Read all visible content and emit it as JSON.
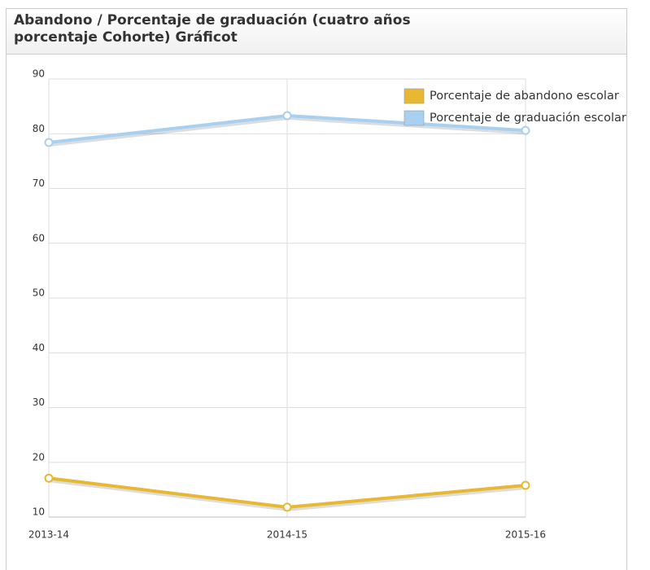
{
  "chart_data": {
    "type": "line",
    "title": "Abandono / Porcentaje de graduación (cuatro años porcentaje Cohorte) Gráficot",
    "categories": [
      "2013-14",
      "2014-15",
      "2015-16"
    ],
    "series": [
      {
        "name": "Porcentaje de abandono escolar",
        "color": "#e8b830",
        "values": [
          17.1,
          11.8,
          15.8
        ]
      },
      {
        "name": "Porcentaje de graduación escolar",
        "color": "#a8d0f0",
        "values": [
          78.4,
          83.3,
          80.6
        ]
      }
    ],
    "ylim": [
      10,
      90
    ],
    "yticks": [
      10,
      20,
      30,
      40,
      50,
      60,
      70,
      80,
      90
    ],
    "grid": true,
    "legend": "top-right"
  }
}
